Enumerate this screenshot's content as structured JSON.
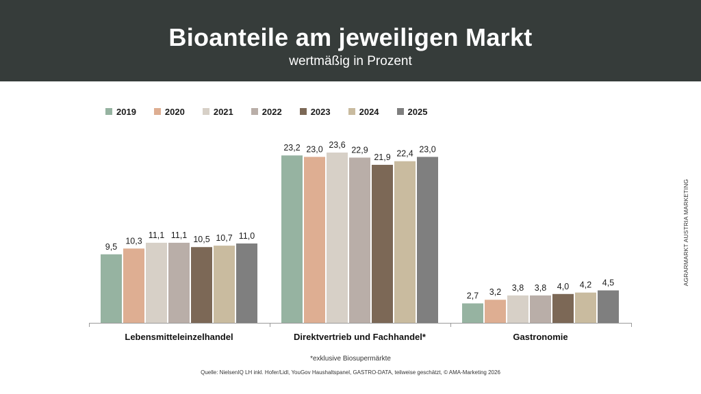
{
  "header": {
    "title": "Bioanteile am jeweiligen Markt",
    "subtitle": "wertmäßig in Prozent"
  },
  "side_label": "AGRARMARKT AUSTRIA MARKETING",
  "footnote": "*exklusive Biosupermärkte",
  "source": "Quelle: NielsenIQ LH inkl. Hofer/Lidl, YouGov Haushaltspanel, GASTRO-DATA, teilweise geschätzt, © AMA-Marketing 2026",
  "chart_data": {
    "type": "bar",
    "title": "Bioanteile am jeweiligen Markt",
    "subtitle": "wertmäßig in Prozent",
    "categories": [
      "Lebensmitteleinzelhandel",
      "Direktvertrieb und Fachhandel*",
      "Gastronomie"
    ],
    "series": [
      {
        "name": "2019",
        "color": "#96b3a1",
        "values": [
          9.5,
          23.2,
          2.7
        ],
        "labels": [
          "9,5",
          "23,2",
          "2,7"
        ]
      },
      {
        "name": "2020",
        "color": "#deae92",
        "values": [
          10.3,
          23.0,
          3.2
        ],
        "labels": [
          "10,3",
          "23,0",
          "3,2"
        ]
      },
      {
        "name": "2021",
        "color": "#d7d0c7",
        "values": [
          11.1,
          23.6,
          3.8
        ],
        "labels": [
          "11,1",
          "23,6",
          "3,8"
        ]
      },
      {
        "name": "2022",
        "color": "#b9aea8",
        "values": [
          11.1,
          22.9,
          3.8
        ],
        "labels": [
          "11,1",
          "22,9",
          "3,8"
        ]
      },
      {
        "name": "2023",
        "color": "#7c6856",
        "values": [
          10.5,
          21.9,
          4.0
        ],
        "labels": [
          "10,5",
          "21,9",
          "4,0"
        ]
      },
      {
        "name": "2024",
        "color": "#c9bb9f",
        "values": [
          10.7,
          22.4,
          4.2
        ],
        "labels": [
          "10,7",
          "22,4",
          "4,2"
        ]
      },
      {
        "name": "2025",
        "color": "#7f7f7f",
        "values": [
          11.0,
          23.0,
          4.5
        ],
        "labels": [
          "11,0",
          "23,0",
          "4,5"
        ]
      }
    ],
    "ylim": [
      0,
      25
    ],
    "grid": false,
    "legend_position": "top"
  }
}
